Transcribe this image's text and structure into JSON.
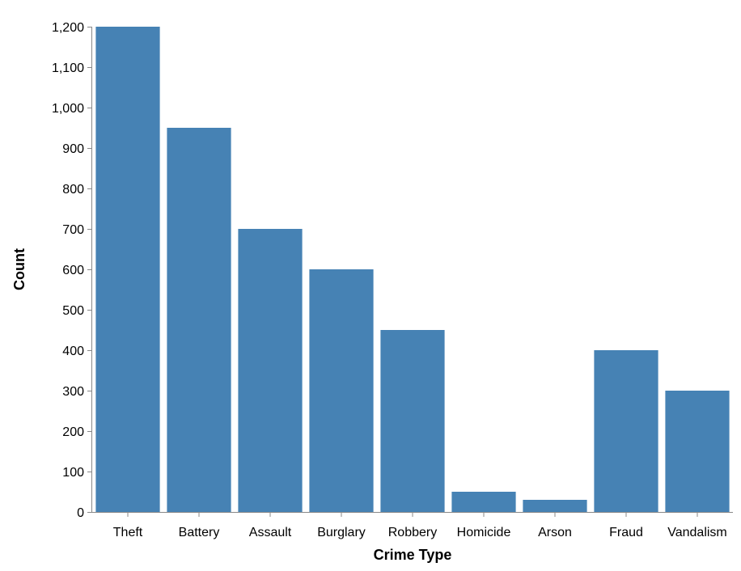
{
  "chart_data": {
    "type": "bar",
    "categories": [
      "Theft",
      "Battery",
      "Assault",
      "Burglary",
      "Robbery",
      "Homicide",
      "Arson",
      "Fraud",
      "Vandalism"
    ],
    "values": [
      1200,
      950,
      700,
      600,
      450,
      50,
      30,
      400,
      300
    ],
    "xlabel": "Crime Type",
    "ylabel": "Count",
    "ylim": [
      0,
      1200
    ],
    "yticks": [
      0,
      100,
      200,
      300,
      400,
      500,
      600,
      700,
      800,
      900,
      1000,
      1100,
      1200
    ],
    "ytick_labels": [
      "0",
      "100",
      "200",
      "300",
      "400",
      "500",
      "600",
      "700",
      "800",
      "900",
      "1,000",
      "1,100",
      "1,200"
    ],
    "grid": false,
    "legend": "none",
    "bar_color": "#4682b4",
    "axis_color": "#888888"
  }
}
